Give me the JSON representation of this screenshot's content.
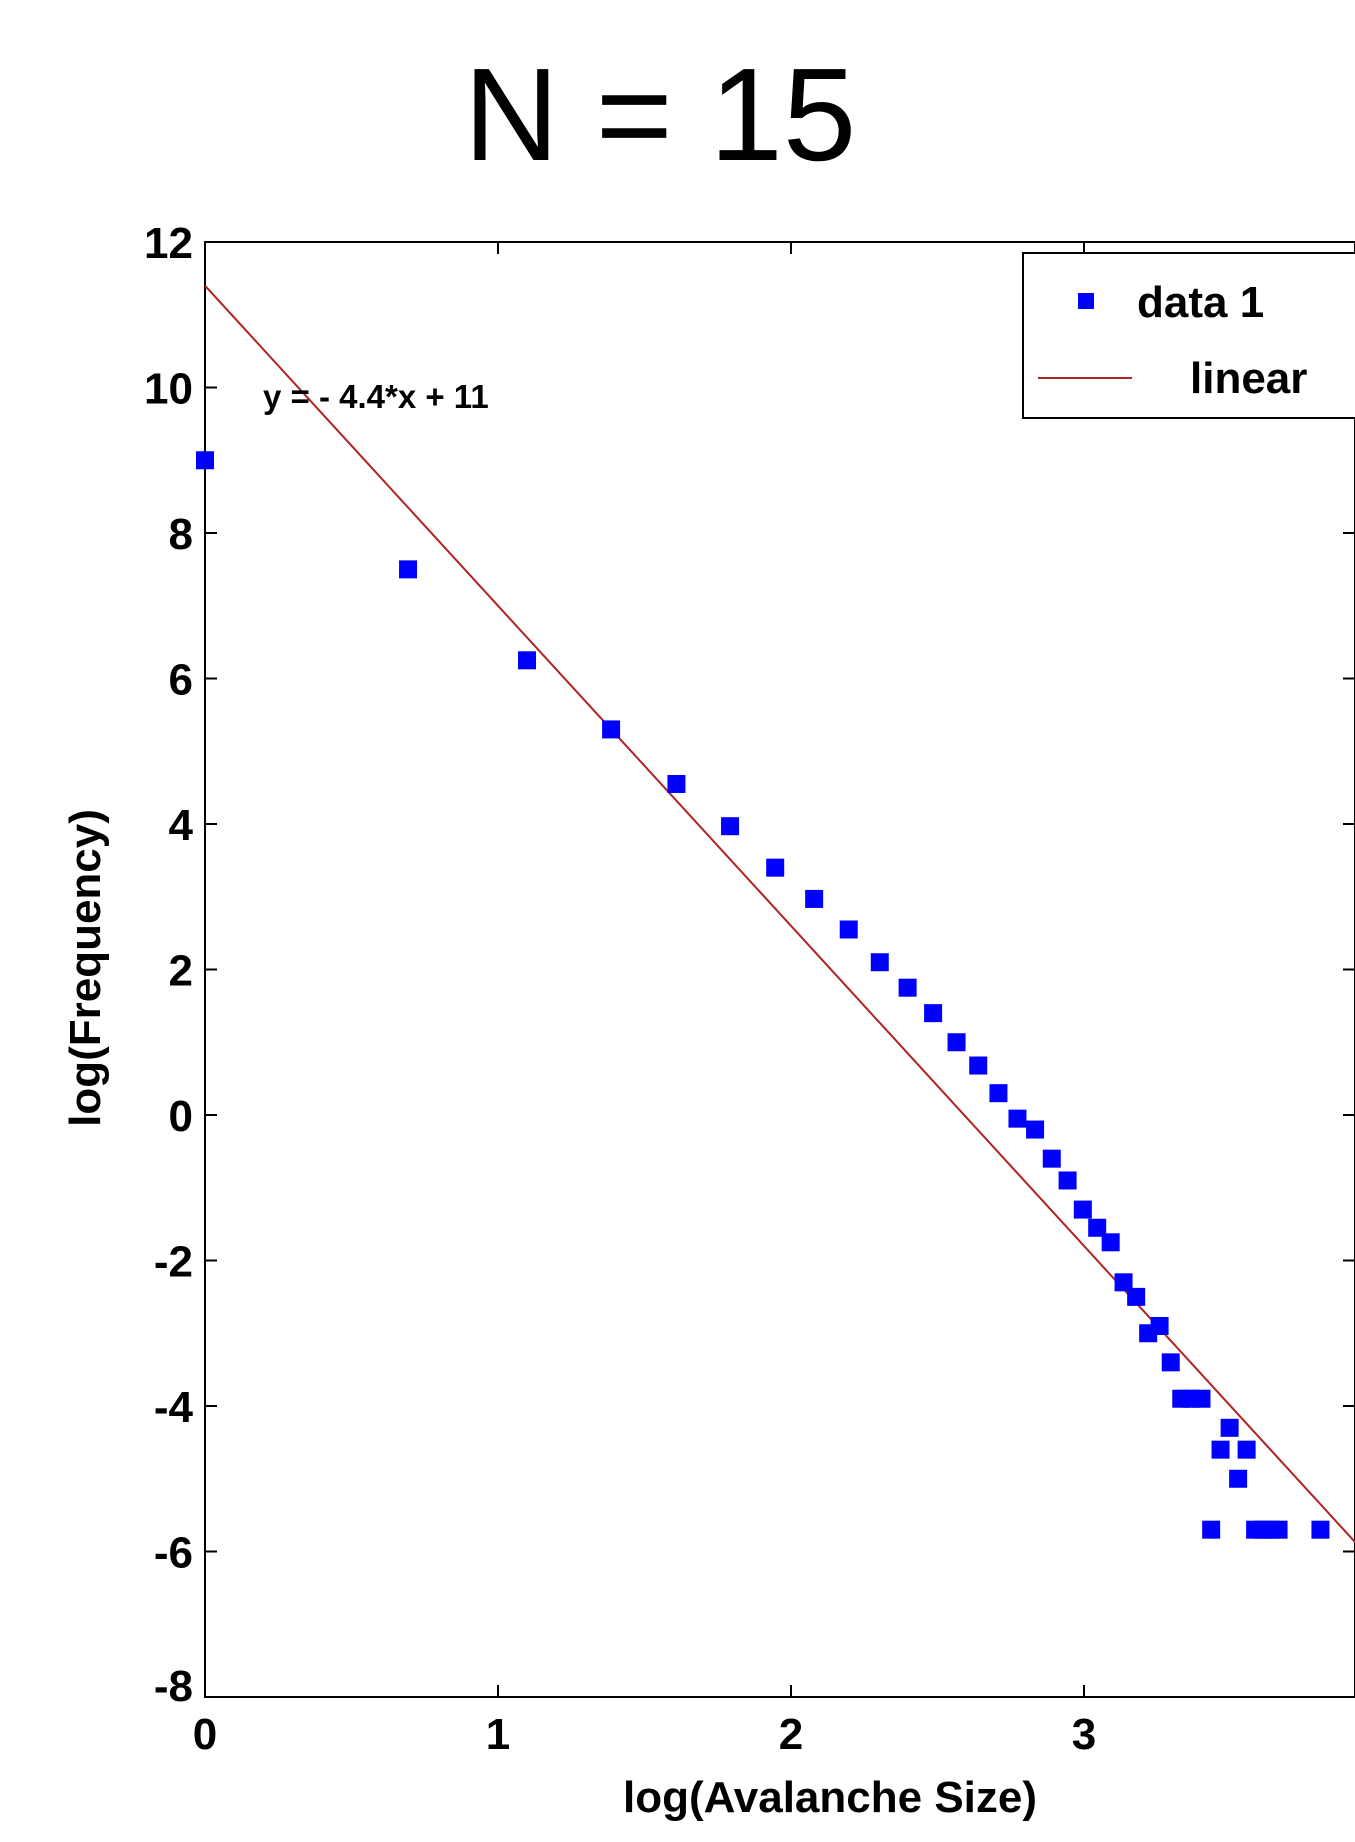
{
  "chart_data": {
    "type": "scatter",
    "title": "N = 15",
    "xlabel": "log(Avalanche Size)",
    "ylabel": "log(Frequency)",
    "xlim": [
      0,
      4
    ],
    "ylim": [
      -8,
      12
    ],
    "x_ticks": [
      "0",
      "1",
      "2",
      "3"
    ],
    "y_ticks": [
      "12",
      "10",
      "8",
      "6",
      "4",
      "2",
      "0",
      "-2",
      "-4",
      "-6",
      "-8"
    ],
    "legend_placement": "top-right",
    "annotation": "y = - 4.4*x + 11",
    "series": [
      {
        "name": "data 1",
        "kind": "points",
        "color": "#0000ff",
        "x": [
          0.0,
          0.693,
          1.099,
          1.386,
          1.609,
          1.792,
          1.946,
          2.079,
          2.197,
          2.303,
          2.398,
          2.485,
          2.565,
          2.639,
          2.708,
          2.773,
          2.833,
          2.89,
          2.944,
          2.996,
          3.045,
          3.091,
          3.135,
          3.178,
          3.219,
          3.258,
          3.296,
          3.332,
          3.367,
          3.401,
          3.434,
          3.466,
          3.497,
          3.526,
          3.555,
          3.584,
          3.611,
          3.638,
          3.664,
          3.807
        ],
        "y": [
          9.0,
          7.5,
          6.25,
          5.3,
          4.55,
          3.97,
          3.4,
          2.97,
          2.55,
          2.1,
          1.75,
          1.4,
          1.0,
          0.68,
          0.3,
          -0.05,
          -0.2,
          -0.6,
          -0.9,
          -1.3,
          -1.55,
          -1.75,
          -2.3,
          -2.5,
          -3.0,
          -2.9,
          -3.4,
          -3.9,
          -3.9,
          -3.9,
          -5.7,
          -4.6,
          -4.3,
          -5.0,
          -4.6,
          -5.7,
          -5.7,
          -5.7,
          -5.7,
          -5.7
        ]
      },
      {
        "name": "linear",
        "kind": "line",
        "color": "#b22222",
        "x": [
          0,
          4
        ],
        "y": [
          11.4,
          -6.2
        ]
      }
    ]
  }
}
